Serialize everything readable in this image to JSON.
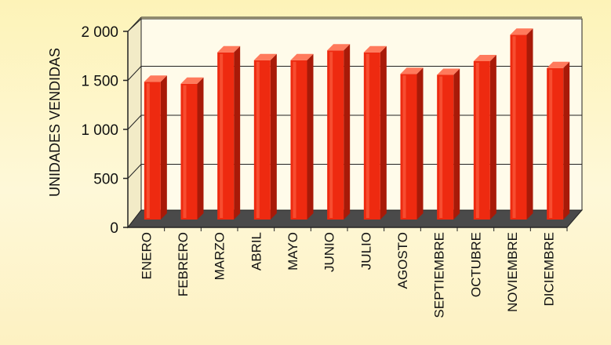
{
  "chart_data": {
    "type": "bar",
    "title": "",
    "xlabel": "",
    "ylabel": "UNIDADES VENDIDAS",
    "ylim": [
      0,
      2000
    ],
    "yticks": [
      0,
      500,
      1000,
      1500,
      2000
    ],
    "ytick_labels": [
      "0",
      "500",
      "1 000",
      "1 500",
      "2 000"
    ],
    "grid": true,
    "bar_color": "#ee2a10",
    "categories": [
      "ENERO",
      "FEBRERO",
      "MARZO",
      "ABRIL",
      "MAYO",
      "JUNIO",
      "JULIO",
      "AGOSTO",
      "SEPTIEMBRE",
      "OCTUBRE",
      "NOVIEMBRE",
      "DICIEMBRE"
    ],
    "values": [
      1470,
      1450,
      1770,
      1690,
      1690,
      1790,
      1770,
      1550,
      1540,
      1680,
      1950,
      1610
    ]
  }
}
